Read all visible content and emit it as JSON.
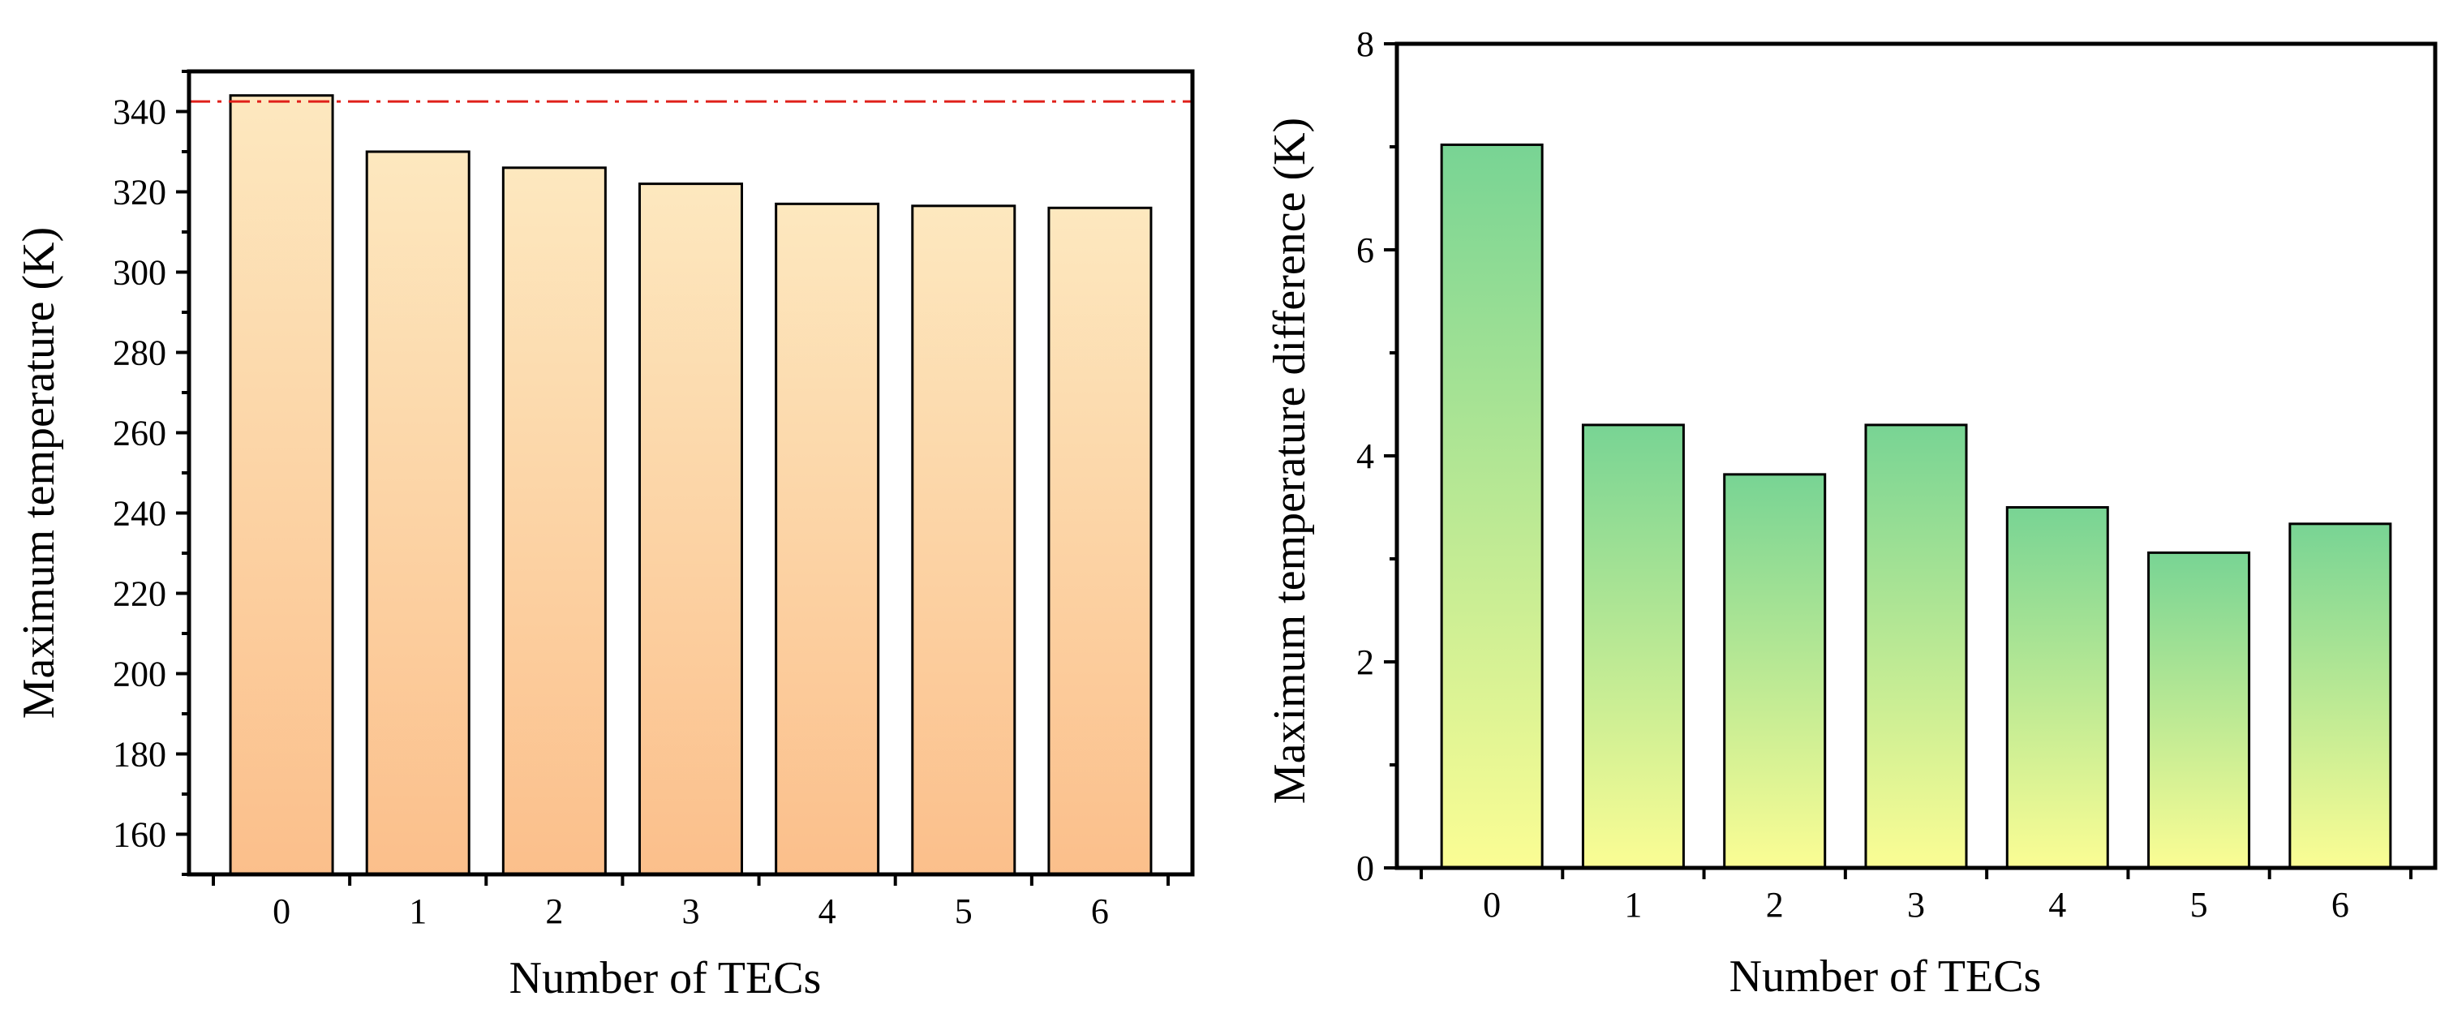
{
  "chart_data": [
    {
      "type": "bar",
      "id": "left",
      "title": "",
      "xlabel": "Number of TECs",
      "ylabel": "Maximum temperature (K)",
      "categories": [
        "0",
        "1",
        "2",
        "3",
        "4",
        "5",
        "6"
      ],
      "values": [
        344,
        330,
        326,
        322,
        317,
        316.5,
        316
      ],
      "ylim": [
        150,
        350
      ],
      "yticks": [
        160,
        180,
        200,
        220,
        240,
        260,
        280,
        300,
        320,
        340
      ],
      "ytick_labels": [
        "160",
        "180",
        "200",
        "220",
        "240",
        "260",
        "280",
        "300",
        "320",
        "340"
      ],
      "reference_line": {
        "value": 342.5,
        "style": "dash-dot",
        "color": "#e0201a"
      },
      "bar_gradient": {
        "top": "#fde8bf",
        "bottom": "#fbbf8b"
      },
      "grid": false
    },
    {
      "type": "bar",
      "id": "right",
      "title": "",
      "xlabel": "Number of TECs",
      "ylabel": "Maximum temperature difference (K)",
      "categories": [
        "0",
        "1",
        "2",
        "3",
        "4",
        "5",
        "6"
      ],
      "values": [
        7.02,
        4.3,
        3.82,
        4.3,
        3.5,
        3.06,
        3.34
      ],
      "ylim": [
        0,
        8
      ],
      "yticks": [
        0,
        2,
        4,
        6,
        8
      ],
      "ytick_labels": [
        "0",
        "2",
        "4",
        "6",
        "8"
      ],
      "bar_gradient": {
        "top": "#78d494",
        "bottom": "#fbfd94"
      },
      "grid": false
    }
  ]
}
